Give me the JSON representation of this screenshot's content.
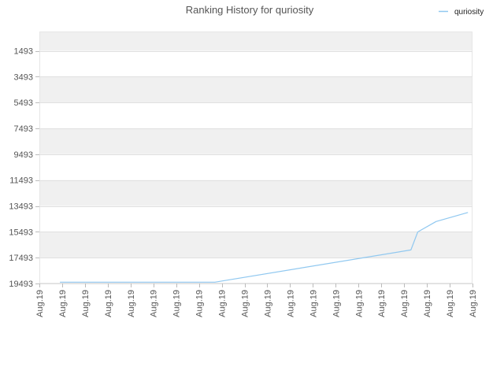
{
  "chart_data": {
    "type": "line",
    "title": "Ranking History for quriosity",
    "xlabel": "",
    "ylabel": "",
    "legend": "top-right",
    "grid": true,
    "y_inverted": true,
    "ylim": [
      19493,
      0
    ],
    "y_ticks": [
      1493,
      3493,
      5493,
      7493,
      9493,
      11493,
      13493,
      15493,
      17493,
      19493
    ],
    "x_tick_labels": [
      "Aug.19",
      "Aug.19",
      "Aug.19",
      "Aug.19",
      "Aug.19",
      "Aug.19",
      "Aug.19",
      "Aug.19",
      "Aug.19",
      "Aug.19",
      "Aug.19",
      "Aug.19",
      "Aug.19",
      "Aug.19",
      "Aug.19",
      "Aug.19",
      "Aug.19",
      "Aug.19",
      "Aug.19",
      "Aug.19"
    ],
    "series": [
      {
        "name": "quriosity",
        "color": "#90c8f0",
        "x": [
          0.9,
          7.7,
          16.3,
          16.6,
          17.4,
          18.8
        ],
        "y": [
          19390,
          19390,
          16900,
          15500,
          14700,
          14000
        ]
      }
    ]
  }
}
